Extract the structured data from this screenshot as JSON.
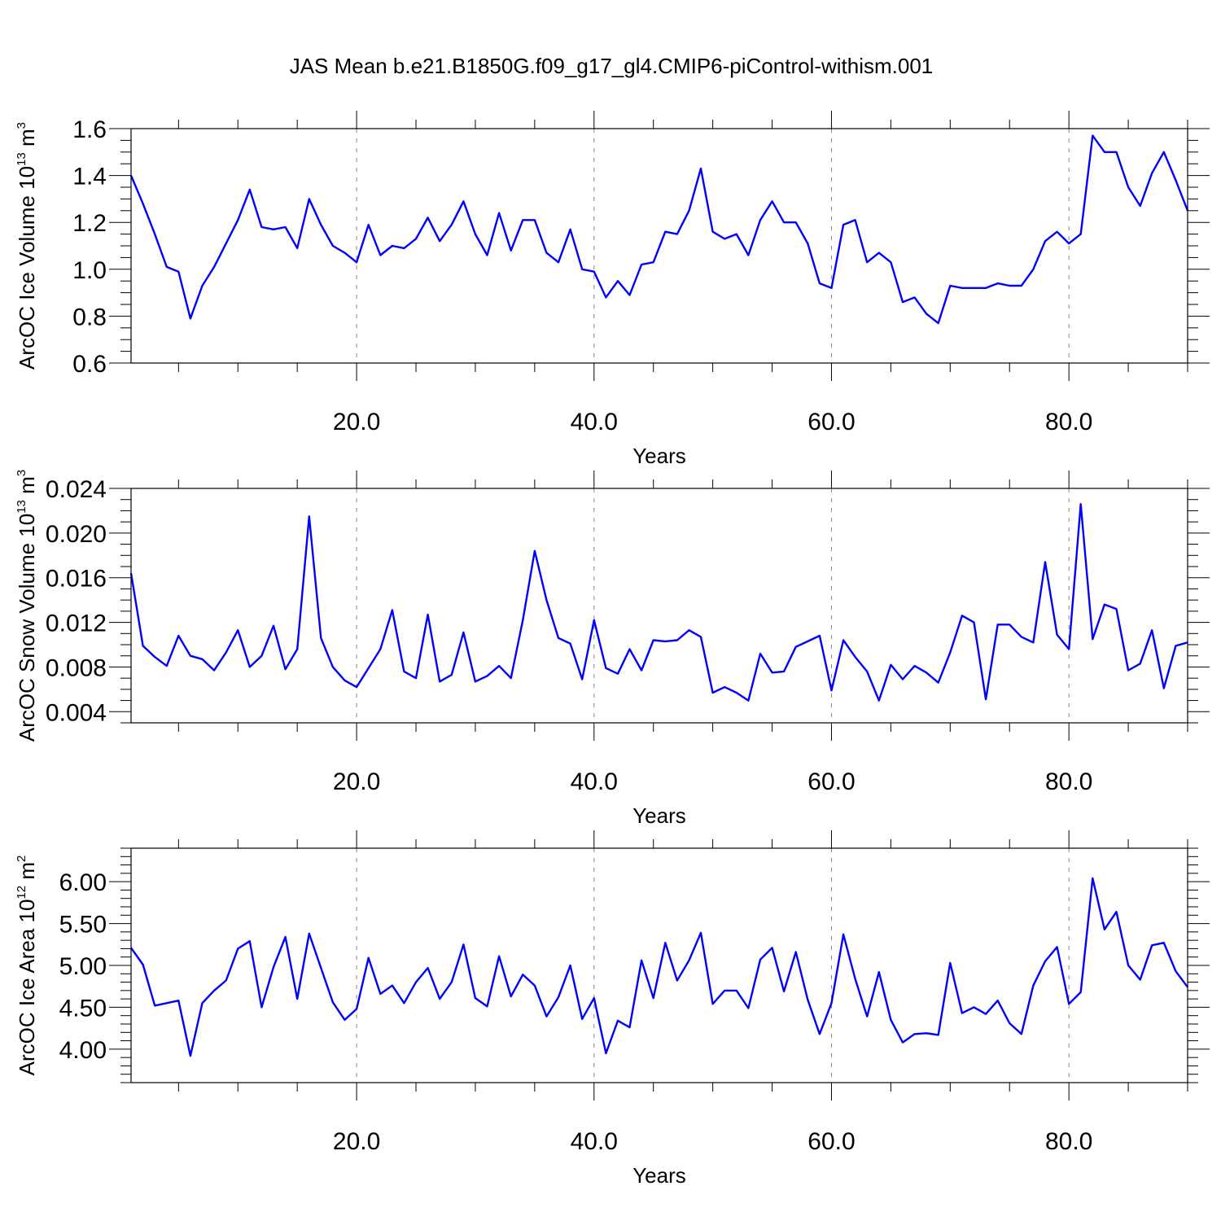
{
  "figure_title": "JAS Mean b.e21.B1850G.f09_g17_gl4.CMIP6-piControl-withism.001",
  "chart_data": [
    {
      "type": "line",
      "xlabel": "Years",
      "ylabel": "ArcOC Ice Volume 10",
      "ylabel_sup": "13",
      "ylabel_unit": " m",
      "ylabel_unit_sup": "3",
      "xlim": [
        1,
        90
      ],
      "ylim": [
        0.6,
        1.6
      ],
      "x_ticks": [
        20,
        40,
        60,
        80
      ],
      "x_tick_labels": [
        "20.0",
        "40.0",
        "60.0",
        "80.0"
      ],
      "y_ticks": [
        0.6,
        0.8,
        1.0,
        1.2,
        1.4,
        1.6
      ],
      "y_tick_labels": [
        "0.6",
        "0.8",
        "1.0",
        "1.2",
        "1.4",
        "1.6"
      ],
      "y_minor_step": 0.05,
      "grid": "vertical-dashed",
      "color": "#0000ff",
      "x_start": 1,
      "values": [
        1.4,
        1.28,
        1.15,
        1.01,
        0.99,
        0.79,
        0.93,
        1.01,
        1.11,
        1.21,
        1.34,
        1.18,
        1.17,
        1.18,
        1.09,
        1.3,
        1.19,
        1.1,
        1.07,
        1.03,
        1.19,
        1.06,
        1.1,
        1.09,
        1.13,
        1.22,
        1.12,
        1.19,
        1.29,
        1.15,
        1.06,
        1.24,
        1.08,
        1.21,
        1.21,
        1.07,
        1.03,
        1.17,
        1.0,
        0.99,
        0.88,
        0.95,
        0.89,
        1.02,
        1.03,
        1.16,
        1.15,
        1.25,
        1.43,
        1.16,
        1.13,
        1.15,
        1.06,
        1.21,
        1.29,
        1.2,
        1.2,
        1.11,
        0.94,
        0.92,
        1.19,
        1.21,
        1.03,
        1.07,
        1.03,
        0.86,
        0.88,
        0.81,
        0.77,
        0.93,
        0.92,
        0.92,
        0.92,
        0.94,
        0.93,
        0.93,
        1.0,
        1.12,
        1.16,
        1.11,
        1.15,
        1.57,
        1.5,
        1.5,
        1.35,
        1.27,
        1.41,
        1.5,
        1.38,
        1.25
      ]
    },
    {
      "type": "line",
      "xlabel": "Years",
      "ylabel": "ArcOC Snow Volume 10",
      "ylabel_sup": "13",
      "ylabel_unit": " m",
      "ylabel_unit_sup": "3",
      "xlim": [
        1,
        90
      ],
      "ylim": [
        0.003,
        0.024
      ],
      "x_ticks": [
        20,
        40,
        60,
        80
      ],
      "x_tick_labels": [
        "20.0",
        "40.0",
        "60.0",
        "80.0"
      ],
      "y_ticks": [
        0.004,
        0.008,
        0.012,
        0.016,
        0.02,
        0.024
      ],
      "y_tick_labels": [
        "0.004",
        "0.008",
        "0.012",
        "0.016",
        "0.020",
        "0.024"
      ],
      "y_minor_step": 0.001,
      "grid": "vertical-dashed",
      "color": "#0000ff",
      "x_start": 1,
      "values": [
        0.0164,
        0.0099,
        0.0089,
        0.0081,
        0.0108,
        0.009,
        0.0087,
        0.0077,
        0.0093,
        0.0113,
        0.008,
        0.009,
        0.0117,
        0.0078,
        0.0096,
        0.0215,
        0.0106,
        0.008,
        0.0068,
        0.0062,
        0.0079,
        0.0096,
        0.0131,
        0.0076,
        0.007,
        0.0127,
        0.0067,
        0.0073,
        0.0111,
        0.0067,
        0.0072,
        0.0081,
        0.007,
        0.0122,
        0.0184,
        0.014,
        0.0106,
        0.0101,
        0.0069,
        0.0122,
        0.0079,
        0.0074,
        0.0096,
        0.0077,
        0.0104,
        0.0103,
        0.0104,
        0.0113,
        0.0107,
        0.0057,
        0.0062,
        0.0057,
        0.005,
        0.0092,
        0.0075,
        0.0076,
        0.0098,
        0.0103,
        0.0108,
        0.0059,
        0.0104,
        0.0089,
        0.0076,
        0.005,
        0.0082,
        0.0069,
        0.0081,
        0.0075,
        0.0066,
        0.0093,
        0.0126,
        0.012,
        0.0051,
        0.0118,
        0.0118,
        0.0107,
        0.0102,
        0.0174,
        0.0109,
        0.0096,
        0.0226,
        0.0105,
        0.0136,
        0.0132,
        0.0077,
        0.0083,
        0.0113,
        0.0061,
        0.0099,
        0.0102
      ]
    },
    {
      "type": "line",
      "xlabel": "Years",
      "ylabel": "ArcOC Ice Area 10",
      "ylabel_sup": "12",
      "ylabel_unit": " m",
      "ylabel_unit_sup": "2",
      "xlim": [
        1,
        90
      ],
      "ylim": [
        3.6,
        6.4
      ],
      "x_ticks": [
        20,
        40,
        60,
        80
      ],
      "x_tick_labels": [
        "20.0",
        "40.0",
        "60.0",
        "80.0"
      ],
      "y_ticks": [
        4.0,
        4.5,
        5.0,
        5.5,
        6.0
      ],
      "y_tick_labels": [
        "4.00",
        "4.50",
        "5.00",
        "5.50",
        "6.00"
      ],
      "y_minor_step": 0.1,
      "grid": "vertical-dashed",
      "color": "#0000ff",
      "x_start": 1,
      "values": [
        5.21,
        5.01,
        4.52,
        4.55,
        4.58,
        3.92,
        4.55,
        4.7,
        4.82,
        5.2,
        5.29,
        4.5,
        4.98,
        5.34,
        4.6,
        5.38,
        4.97,
        4.56,
        4.35,
        4.48,
        5.09,
        4.66,
        4.76,
        4.55,
        4.8,
        4.97,
        4.6,
        4.8,
        5.25,
        4.61,
        4.51,
        5.11,
        4.63,
        4.89,
        4.76,
        4.39,
        4.62,
        5.0,
        4.36,
        4.61,
        3.95,
        4.34,
        4.26,
        5.06,
        4.61,
        5.27,
        4.82,
        5.06,
        5.39,
        4.54,
        4.7,
        4.7,
        4.49,
        5.07,
        5.21,
        4.69,
        5.16,
        4.59,
        4.18,
        4.55,
        5.37,
        4.84,
        4.39,
        4.92,
        4.35,
        4.08,
        4.18,
        4.19,
        4.17,
        5.03,
        4.43,
        4.5,
        4.42,
        4.58,
        4.31,
        4.18,
        4.76,
        5.05,
        5.22,
        4.54,
        4.68,
        6.04,
        5.43,
        5.64,
        5.0,
        4.83,
        5.24,
        5.27,
        4.93,
        4.74
      ]
    }
  ]
}
